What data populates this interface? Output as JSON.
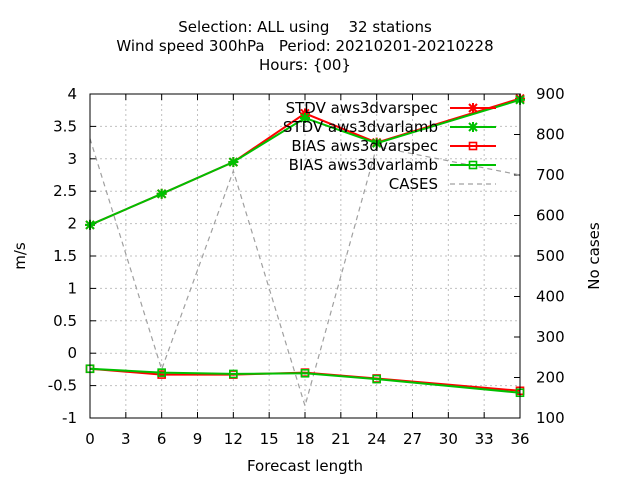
{
  "chart_data": {
    "type": "line",
    "title_lines": [
      "Selection: ALL using    32 stations",
      "Wind speed 300hPa   Period: 20210201-20210228",
      "Hours: {00}"
    ],
    "xlabel": "Forecast length",
    "ylabel": "m/s",
    "y2label": "No cases",
    "x_ticks": [
      0,
      3,
      6,
      9,
      12,
      15,
      18,
      21,
      24,
      27,
      30,
      33,
      36
    ],
    "y_ticks": [
      4,
      3.5,
      3,
      2.5,
      2,
      1.5,
      1,
      0.5,
      0,
      -0.5,
      -1
    ],
    "y2_ticks": [
      900,
      800,
      700,
      600,
      500,
      400,
      300,
      200,
      100
    ],
    "xlim": [
      0,
      36
    ],
    "ylim": [
      -1,
      4
    ],
    "y2lim": [
      100,
      900
    ],
    "grid": true,
    "legend_position": "top-right",
    "series": [
      {
        "name": "STDV aws3dvarspec",
        "axis": "y",
        "color": "#ff0000",
        "marker": "cross",
        "x": [
          0,
          6,
          12,
          18,
          24,
          36
        ],
        "values": [
          1.98,
          2.46,
          2.95,
          3.7,
          3.25,
          3.93
        ]
      },
      {
        "name": "STDV aws3dvarlamb",
        "axis": "y",
        "color": "#00c000",
        "marker": "cross",
        "x": [
          0,
          6,
          12,
          18,
          24,
          36
        ],
        "values": [
          1.98,
          2.46,
          2.95,
          3.63,
          3.24,
          3.91
        ]
      },
      {
        "name": "BIAS aws3dvarspec",
        "axis": "y",
        "color": "#ff0000",
        "marker": "square",
        "x": [
          0,
          6,
          12,
          18,
          24,
          36
        ],
        "values": [
          -0.24,
          -0.33,
          -0.33,
          -0.3,
          -0.39,
          -0.58
        ]
      },
      {
        "name": "BIAS aws3dvarlamb",
        "axis": "y",
        "color": "#00c000",
        "marker": "square",
        "x": [
          0,
          6,
          12,
          18,
          24,
          36
        ],
        "values": [
          -0.24,
          -0.3,
          -0.32,
          -0.31,
          -0.4,
          -0.61
        ]
      },
      {
        "name": "CASES",
        "axis": "y2",
        "color": "#a0a0a0",
        "marker": "none",
        "dashed": true,
        "x": [
          0,
          6,
          12,
          18,
          24,
          36
        ],
        "values": [
          790,
          220,
          710,
          130,
          770,
          700
        ]
      }
    ]
  }
}
